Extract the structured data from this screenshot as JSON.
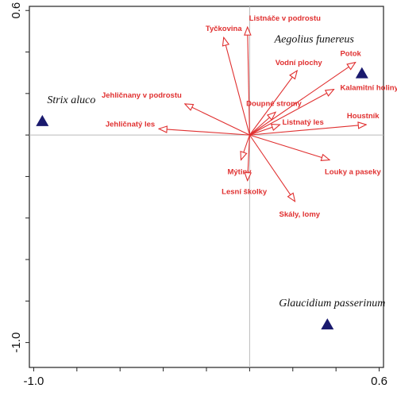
{
  "chart_data": {
    "type": "scatter",
    "title": "",
    "xlabel": "",
    "ylabel": "",
    "xlim": [
      -1.02,
      0.62
    ],
    "ylim": [
      -1.12,
      0.62
    ],
    "x_tick_labels": [
      "-1.0",
      "0.6"
    ],
    "x_tick_values": [
      -1.0,
      0.6
    ],
    "y_tick_labels": [
      "0.6",
      "-1.0"
    ],
    "y_tick_values": [
      0.6,
      -1.0
    ],
    "grid": false,
    "zero_lines": true,
    "arrow_color": "#e03030",
    "species_color": "#1a1a6e",
    "environmental_vectors": [
      {
        "label": "Listnáče v podrostu",
        "x": -0.01,
        "y": 0.52
      },
      {
        "label": "Tyčkovina",
        "x": -0.12,
        "y": 0.47
      },
      {
        "label": "Vodní plochy",
        "x": 0.22,
        "y": 0.31
      },
      {
        "label": "Potok",
        "x": 0.49,
        "y": 0.35
      },
      {
        "label": "Kalamitní holiny",
        "x": 0.39,
        "y": 0.22
      },
      {
        "label": "Doupné stromy",
        "x": 0.12,
        "y": 0.11
      },
      {
        "label": "Listnatý les",
        "x": 0.14,
        "y": 0.05
      },
      {
        "label": "Houstník",
        "x": 0.54,
        "y": 0.05
      },
      {
        "label": "Jehličnany v podrostu",
        "x": -0.3,
        "y": 0.15
      },
      {
        "label": "Jehličnatý les",
        "x": -0.42,
        "y": 0.03
      },
      {
        "label": "Mýtiny",
        "x": -0.04,
        "y": -0.12
      },
      {
        "label": "Lesní školky",
        "x": -0.01,
        "y": -0.22
      },
      {
        "label": "Louky a paseky",
        "x": 0.37,
        "y": -0.12
      },
      {
        "label": "Skály, lomy",
        "x": 0.21,
        "y": -0.32
      }
    ],
    "species": [
      {
        "label": "Strix aluco",
        "x": -0.96,
        "y": 0.07
      },
      {
        "label": "Aegolius funereus",
        "x": 0.52,
        "y": 0.3
      },
      {
        "label": "Glaucidium passerinum",
        "x": 0.36,
        "y": -0.91
      }
    ]
  }
}
